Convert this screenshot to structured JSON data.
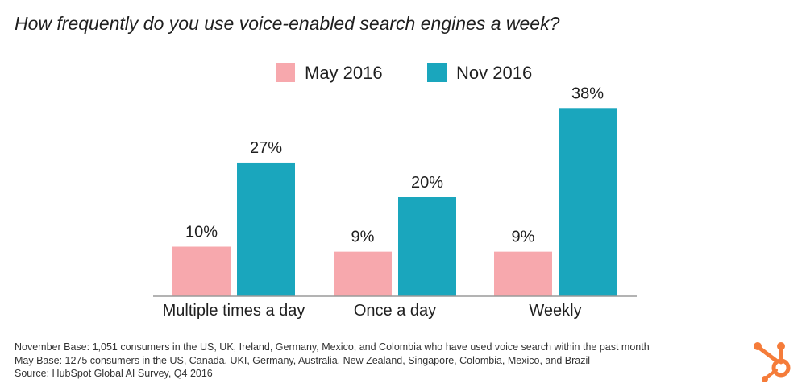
{
  "colors": {
    "may": "#f7a8ad",
    "nov": "#1aa6bd",
    "axis": "#9a9a9a",
    "text": "#1f1f1f",
    "logo": "#f57c3a"
  },
  "footnotes": {
    "line1": "November Base: 1,051 consumers in the US, UK, Ireland, Germany, Mexico, and Colombia who have used voice search within the past month",
    "line2": "May Base: 1275 consumers in the US, Canada, UKI, Germany, Australia, New Zealand, Singapore, Colombia, Mexico, and Brazil",
    "line3": "Source: HubSpot Global AI Survey, Q4 2016"
  },
  "logo": {
    "icon": "hubspot-sprocket-icon"
  },
  "chart_data": {
    "type": "bar",
    "title": "How frequently do you use voice-enabled search engines a week?",
    "categories": [
      "Multiple times a day",
      "Once a day",
      "Weekly"
    ],
    "series": [
      {
        "name": "May 2016",
        "values": [
          10,
          9,
          9
        ],
        "labels": [
          "10%",
          "9%",
          "9%"
        ]
      },
      {
        "name": "Nov 2016",
        "values": [
          27,
          20,
          38
        ],
        "labels": [
          "27%",
          "20%",
          "38%"
        ]
      }
    ],
    "xlabel": "",
    "ylabel": "",
    "ylim": [
      0,
      40
    ],
    "grid": false,
    "legend_position": "top-center"
  }
}
